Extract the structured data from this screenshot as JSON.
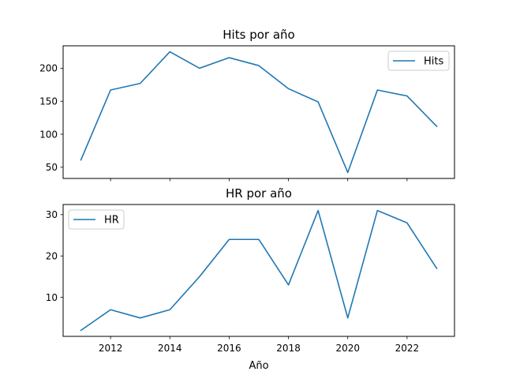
{
  "chart_data": [
    {
      "type": "line",
      "title": "Hits por año",
      "xlabel": "",
      "ylabel": "",
      "xlim": [
        2010.4,
        2023.6
      ],
      "ylim": [
        33,
        234
      ],
      "x_ticks": [
        2012,
        2014,
        2016,
        2018,
        2020,
        2022
      ],
      "x_tick_labels_shown": false,
      "y_ticks": [
        50,
        100,
        150,
        200
      ],
      "x": [
        2011,
        2012,
        2013,
        2014,
        2015,
        2016,
        2017,
        2018,
        2019,
        2020,
        2021,
        2022,
        2023
      ],
      "series": [
        {
          "name": "Hits",
          "values": [
            61,
            167,
            177,
            225,
            200,
            216,
            204,
            169,
            149,
            42,
            167,
            158,
            112
          ],
          "color": "#1f77b4"
        }
      ],
      "legend": "upper right",
      "grid": false
    },
    {
      "type": "line",
      "title": "HR por año",
      "xlabel": "Año",
      "ylabel": "",
      "xlim": [
        2010.4,
        2023.6
      ],
      "ylim": [
        0.55,
        32.45
      ],
      "x_ticks": [
        2012,
        2014,
        2016,
        2018,
        2020,
        2022
      ],
      "x_tick_labels_shown": true,
      "y_ticks": [
        10,
        20,
        30
      ],
      "x": [
        2011,
        2012,
        2013,
        2014,
        2015,
        2016,
        2017,
        2018,
        2019,
        2020,
        2021,
        2022,
        2023
      ],
      "series": [
        {
          "name": "HR",
          "values": [
            2,
            7,
            5,
            7,
            15,
            24,
            24,
            13,
            31,
            5,
            31,
            28,
            17
          ],
          "color": "#1f77b4"
        }
      ],
      "legend": "upper left",
      "grid": false
    }
  ]
}
